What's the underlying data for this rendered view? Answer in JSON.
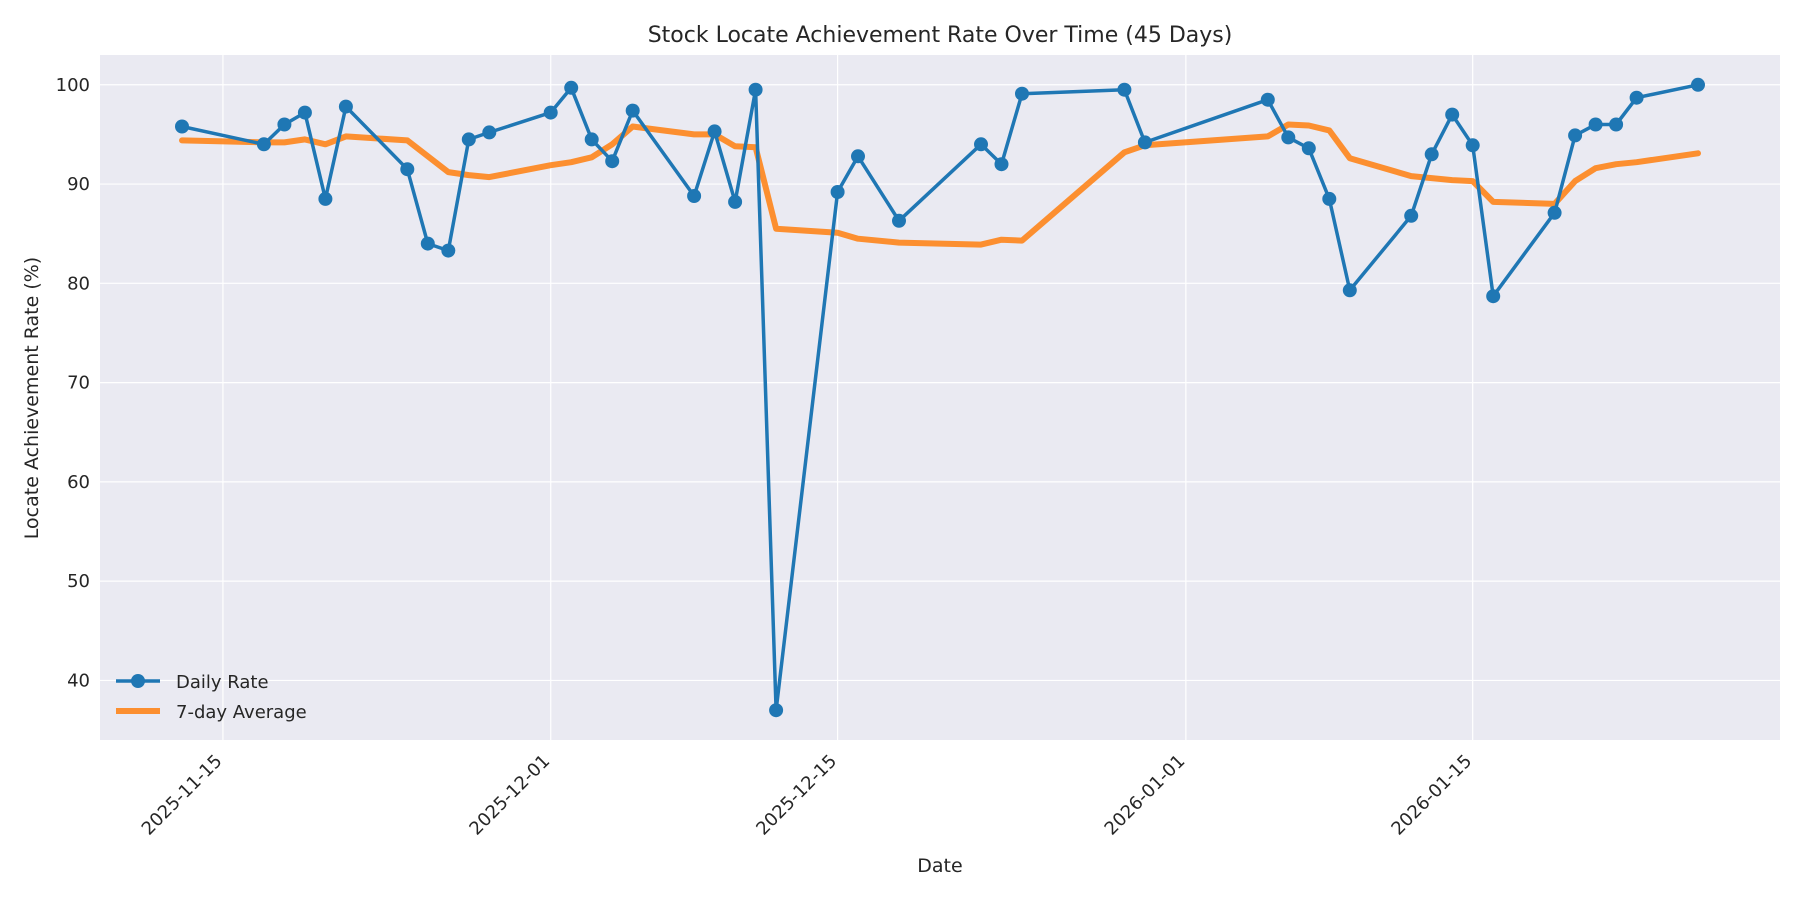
{
  "chart_data": {
    "type": "line",
    "title": "Stock Locate Achievement Rate Over Time (45 Days)",
    "xlabel": "Date",
    "ylabel": "Locate Achievement Rate (%)",
    "xlim": [
      "2025-11-09",
      "2026-01-30"
    ],
    "ylim": [
      34,
      103
    ],
    "yticks": [
      40,
      50,
      60,
      70,
      80,
      90,
      100
    ],
    "xticks": [
      "2025-11-15",
      "2025-12-01",
      "2025-12-15",
      "2026-01-01",
      "2026-01-15"
    ],
    "grid": true,
    "legend_position": "lower-left",
    "series": [
      {
        "name": "Daily Rate",
        "color": "#1f77b4",
        "marker": "circle",
        "x": [
          "2025-11-13",
          "2025-11-17",
          "2025-11-18",
          "2025-11-19",
          "2025-11-20",
          "2025-11-21",
          "2025-11-24",
          "2025-11-25",
          "2025-11-26",
          "2025-11-27",
          "2025-11-28",
          "2025-12-01",
          "2025-12-02",
          "2025-12-03",
          "2025-12-04",
          "2025-12-05",
          "2025-12-08",
          "2025-12-09",
          "2025-12-10",
          "2025-12-11",
          "2025-12-12",
          "2025-12-15",
          "2025-12-16",
          "2025-12-18",
          "2025-12-22",
          "2025-12-23",
          "2025-12-24",
          "2025-12-29",
          "2025-12-30",
          "2026-01-05",
          "2026-01-06",
          "2026-01-07",
          "2026-01-08",
          "2026-01-09",
          "2026-01-12",
          "2026-01-13",
          "2026-01-14",
          "2026-01-15",
          "2026-01-16",
          "2026-01-19",
          "2026-01-20",
          "2026-01-21",
          "2026-01-22",
          "2026-01-23",
          "2026-01-26"
        ],
        "values": [
          95.8,
          94.0,
          96.0,
          97.2,
          88.5,
          97.8,
          91.5,
          84.0,
          83.3,
          94.5,
          95.2,
          97.2,
          99.7,
          94.5,
          92.3,
          97.4,
          88.8,
          95.3,
          88.2,
          99.5,
          37.0,
          89.2,
          92.8,
          86.3,
          94.0,
          92.0,
          99.1,
          99.5,
          94.2,
          98.5,
          94.7,
          93.6,
          88.5,
          79.3,
          86.8,
          93.0,
          97.0,
          93.9,
          78.7,
          87.1,
          94.9,
          96.0,
          96.0,
          98.7,
          100.0
        ]
      },
      {
        "name": "7-day Average",
        "color": "#ff7f0e",
        "x": [
          "2025-11-13",
          "2025-11-17",
          "2025-11-18",
          "2025-11-19",
          "2025-11-20",
          "2025-11-21",
          "2025-11-24",
          "2025-11-25",
          "2025-11-26",
          "2025-11-27",
          "2025-11-28",
          "2025-12-01",
          "2025-12-02",
          "2025-12-03",
          "2025-12-04",
          "2025-12-05",
          "2025-12-08",
          "2025-12-09",
          "2025-12-10",
          "2025-12-11",
          "2025-12-12",
          "2025-12-15",
          "2025-12-16",
          "2025-12-18",
          "2025-12-22",
          "2025-12-23",
          "2025-12-24",
          "2025-12-29",
          "2025-12-30",
          "2026-01-05",
          "2026-01-06",
          "2026-01-07",
          "2026-01-08",
          "2026-01-09",
          "2026-01-12",
          "2026-01-13",
          "2026-01-14",
          "2026-01-15",
          "2026-01-16",
          "2026-01-19",
          "2026-01-20",
          "2026-01-21",
          "2026-01-22",
          "2026-01-23",
          "2026-01-26"
        ],
        "values": [
          94.4,
          94.2,
          94.2,
          94.5,
          94.0,
          94.8,
          94.4,
          92.8,
          91.2,
          90.9,
          90.7,
          91.9,
          92.2,
          92.7,
          94.0,
          95.8,
          95.0,
          95.0,
          93.8,
          93.7,
          85.5,
          85.1,
          84.5,
          84.1,
          83.9,
          84.4,
          84.3,
          93.2,
          93.9,
          94.8,
          96.0,
          95.9,
          95.4,
          92.6,
          90.8,
          90.6,
          90.4,
          90.3,
          88.2,
          88.0,
          90.3,
          91.6,
          92.0,
          92.2,
          93.1
        ]
      }
    ]
  }
}
